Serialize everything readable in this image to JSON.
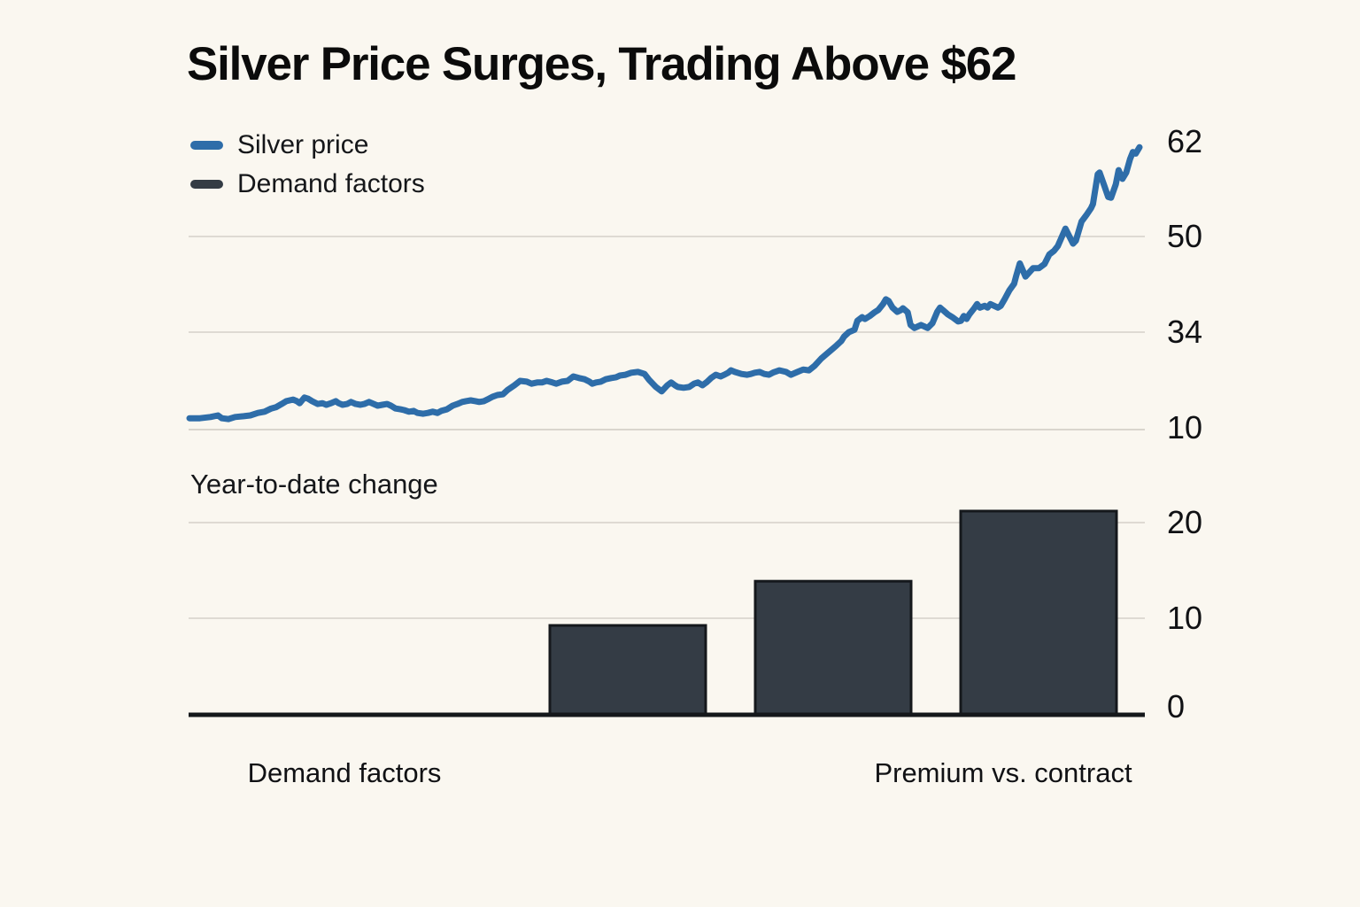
{
  "title": "Silver Price Surges, Trading Above $62",
  "legend": [
    {
      "label": "Silver price",
      "color": "#2e6da9"
    },
    {
      "label": "Demand factors",
      "color": "#343c45"
    }
  ],
  "colors": {
    "background": "#faf7f0",
    "line": "#2e6da9",
    "bar_fill": "#343c45",
    "bar_edge": "#15181c",
    "grid": "#dedad3",
    "baseline": "#15181b",
    "text": "#101114"
  },
  "bar_section_label": "Year-to-date change",
  "x_axis_labels": [
    "Demand factors",
    "Premium vs. contract"
  ],
  "chart_data": [
    {
      "type": "line",
      "title": "Silver price",
      "xlabel": "",
      "ylabel": "",
      "y_ticks": [
        62,
        50,
        34,
        10
      ],
      "axis_note": "right-side tick labels 62/50/34/10 evenly spaced (stylized non-linear scale), grid on at 50/34/10, no x tick labels",
      "series": [
        {
          "name": "Silver price",
          "points": [
            [
              0.0,
              12.8
            ],
            [
              0.011,
              12.8
            ],
            [
              0.022,
              13.1
            ],
            [
              0.03,
              13.5
            ],
            [
              0.034,
              12.8
            ],
            [
              0.041,
              12.6
            ],
            [
              0.048,
              13.1
            ],
            [
              0.057,
              13.3
            ],
            [
              0.064,
              13.5
            ],
            [
              0.072,
              14.1
            ],
            [
              0.079,
              14.4
            ],
            [
              0.086,
              15.2
            ],
            [
              0.091,
              15.5
            ],
            [
              0.097,
              16.3
            ],
            [
              0.102,
              17.0
            ],
            [
              0.109,
              17.4
            ],
            [
              0.113,
              17.0
            ],
            [
              0.116,
              16.5
            ],
            [
              0.121,
              17.9
            ],
            [
              0.125,
              17.6
            ],
            [
              0.129,
              17.0
            ],
            [
              0.135,
              16.3
            ],
            [
              0.14,
              16.5
            ],
            [
              0.144,
              16.1
            ],
            [
              0.149,
              16.5
            ],
            [
              0.154,
              17.0
            ],
            [
              0.157,
              16.5
            ],
            [
              0.161,
              16.1
            ],
            [
              0.166,
              16.3
            ],
            [
              0.17,
              16.8
            ],
            [
              0.175,
              16.3
            ],
            [
              0.18,
              16.1
            ],
            [
              0.184,
              16.3
            ],
            [
              0.189,
              16.8
            ],
            [
              0.194,
              16.3
            ],
            [
              0.198,
              15.9
            ],
            [
              0.203,
              16.1
            ],
            [
              0.208,
              16.3
            ],
            [
              0.212,
              15.9
            ],
            [
              0.217,
              15.2
            ],
            [
              0.222,
              15.0
            ],
            [
              0.226,
              14.8
            ],
            [
              0.231,
              14.4
            ],
            [
              0.236,
              14.6
            ],
            [
              0.24,
              14.1
            ],
            [
              0.246,
              13.9
            ],
            [
              0.251,
              14.1
            ],
            [
              0.256,
              14.4
            ],
            [
              0.261,
              14.1
            ],
            [
              0.265,
              14.6
            ],
            [
              0.271,
              15.0
            ],
            [
              0.277,
              15.9
            ],
            [
              0.282,
              16.3
            ],
            [
              0.287,
              16.8
            ],
            [
              0.291,
              17.0
            ],
            [
              0.296,
              17.2
            ],
            [
              0.301,
              17.0
            ],
            [
              0.305,
              16.8
            ],
            [
              0.31,
              17.0
            ],
            [
              0.315,
              17.6
            ],
            [
              0.319,
              18.1
            ],
            [
              0.324,
              18.5
            ],
            [
              0.33,
              18.7
            ],
            [
              0.335,
              19.8
            ],
            [
              0.342,
              20.9
            ],
            [
              0.348,
              22.0
            ],
            [
              0.355,
              21.8
            ],
            [
              0.36,
              21.3
            ],
            [
              0.366,
              21.6
            ],
            [
              0.371,
              21.6
            ],
            [
              0.376,
              22.0
            ],
            [
              0.382,
              21.6
            ],
            [
              0.386,
              21.3
            ],
            [
              0.392,
              21.8
            ],
            [
              0.398,
              22.0
            ],
            [
              0.404,
              23.1
            ],
            [
              0.41,
              22.7
            ],
            [
              0.416,
              22.4
            ],
            [
              0.421,
              21.8
            ],
            [
              0.424,
              21.3
            ],
            [
              0.428,
              21.6
            ],
            [
              0.433,
              21.8
            ],
            [
              0.438,
              22.4
            ],
            [
              0.444,
              22.7
            ],
            [
              0.449,
              22.9
            ],
            [
              0.453,
              23.3
            ],
            [
              0.459,
              23.5
            ],
            [
              0.465,
              24.0
            ],
            [
              0.472,
              24.2
            ],
            [
              0.479,
              23.7
            ],
            [
              0.484,
              22.2
            ],
            [
              0.491,
              20.5
            ],
            [
              0.497,
              19.4
            ],
            [
              0.503,
              20.9
            ],
            [
              0.507,
              21.6
            ],
            [
              0.511,
              20.9
            ],
            [
              0.514,
              20.5
            ],
            [
              0.52,
              20.3
            ],
            [
              0.526,
              20.5
            ],
            [
              0.531,
              21.3
            ],
            [
              0.535,
              21.6
            ],
            [
              0.54,
              20.9
            ],
            [
              0.545,
              21.8
            ],
            [
              0.549,
              22.7
            ],
            [
              0.554,
              23.5
            ],
            [
              0.559,
              23.1
            ],
            [
              0.563,
              23.5
            ],
            [
              0.567,
              24.0
            ],
            [
              0.57,
              24.6
            ],
            [
              0.574,
              24.2
            ],
            [
              0.581,
              23.7
            ],
            [
              0.587,
              23.5
            ],
            [
              0.591,
              23.7
            ],
            [
              0.595,
              24.0
            ],
            [
              0.6,
              24.2
            ],
            [
              0.605,
              23.7
            ],
            [
              0.61,
              23.5
            ],
            [
              0.614,
              24.0
            ],
            [
              0.616,
              24.2
            ],
            [
              0.621,
              24.6
            ],
            [
              0.628,
              24.2
            ],
            [
              0.633,
              23.5
            ],
            [
              0.64,
              24.2
            ],
            [
              0.646,
              24.8
            ],
            [
              0.652,
              24.6
            ],
            [
              0.658,
              25.7
            ],
            [
              0.665,
              27.5
            ],
            [
              0.67,
              28.5
            ],
            [
              0.677,
              29.9
            ],
            [
              0.681,
              30.7
            ],
            [
              0.686,
              31.8
            ],
            [
              0.689,
              32.9
            ],
            [
              0.694,
              34.0
            ],
            [
              0.7,
              34.4
            ],
            [
              0.703,
              35.9
            ],
            [
              0.708,
              36.5
            ],
            [
              0.711,
              36.2
            ],
            [
              0.716,
              36.7
            ],
            [
              0.721,
              37.3
            ],
            [
              0.725,
              37.7
            ],
            [
              0.73,
              38.7
            ],
            [
              0.733,
              39.5
            ],
            [
              0.736,
              39.2
            ],
            [
              0.74,
              38.1
            ],
            [
              0.745,
              37.4
            ],
            [
              0.749,
              37.7
            ],
            [
              0.751,
              38.0
            ],
            [
              0.756,
              37.3
            ],
            [
              0.759,
              35.2
            ],
            [
              0.763,
              34.7
            ],
            [
              0.77,
              35.2
            ],
            [
              0.773,
              35.0
            ],
            [
              0.777,
              34.7
            ],
            [
              0.782,
              35.5
            ],
            [
              0.787,
              37.4
            ],
            [
              0.79,
              38.1
            ],
            [
              0.793,
              37.7
            ],
            [
              0.798,
              37.0
            ],
            [
              0.803,
              36.5
            ],
            [
              0.809,
              35.8
            ],
            [
              0.812,
              35.9
            ],
            [
              0.815,
              36.7
            ],
            [
              0.818,
              36.2
            ],
            [
              0.821,
              37.0
            ],
            [
              0.826,
              38.0
            ],
            [
              0.829,
              38.7
            ],
            [
              0.832,
              38.1
            ],
            [
              0.837,
              38.4
            ],
            [
              0.84,
              38.1
            ],
            [
              0.843,
              38.7
            ],
            [
              0.847,
              38.4
            ],
            [
              0.851,
              38.1
            ],
            [
              0.854,
              38.4
            ],
            [
              0.858,
              39.5
            ],
            [
              0.863,
              41.0
            ],
            [
              0.868,
              42.1
            ],
            [
              0.87,
              43.3
            ],
            [
              0.874,
              45.5
            ],
            [
              0.88,
              43.3
            ],
            [
              0.888,
              44.7
            ],
            [
              0.894,
              44.7
            ],
            [
              0.9,
              45.4
            ],
            [
              0.905,
              47.0
            ],
            [
              0.91,
              47.6
            ],
            [
              0.914,
              48.4
            ],
            [
              0.922,
              51.0
            ],
            [
              0.93,
              48.8
            ],
            [
              0.933,
              49.3
            ],
            [
              0.939,
              51.9
            ],
            [
              0.944,
              52.7
            ],
            [
              0.949,
              53.6
            ],
            [
              0.951,
              54.1
            ],
            [
              0.956,
              57.9
            ],
            [
              0.958,
              58.1
            ],
            [
              0.963,
              56.4
            ],
            [
              0.967,
              55.0
            ],
            [
              0.97,
              54.9
            ],
            [
              0.975,
              56.6
            ],
            [
              0.978,
              58.4
            ],
            [
              0.982,
              57.3
            ],
            [
              0.986,
              58.1
            ],
            [
              0.99,
              59.8
            ],
            [
              0.993,
              60.7
            ],
            [
              0.996,
              60.5
            ],
            [
              1.0,
              61.3
            ]
          ]
        }
      ]
    },
    {
      "type": "bar",
      "title": "Year-to-date change",
      "x_labels": [
        "Demand factors",
        "Premium vs. contract"
      ],
      "values": [
        9.3,
        13.9,
        21.2
      ],
      "y_ticks": [
        20,
        10,
        0
      ],
      "ylim": [
        0,
        22
      ],
      "axis_note": "three unlabeled bars; two text labels sit under the axis (left area and under right bar); solid black zero baseline; grid at 20 and 10"
    }
  ]
}
